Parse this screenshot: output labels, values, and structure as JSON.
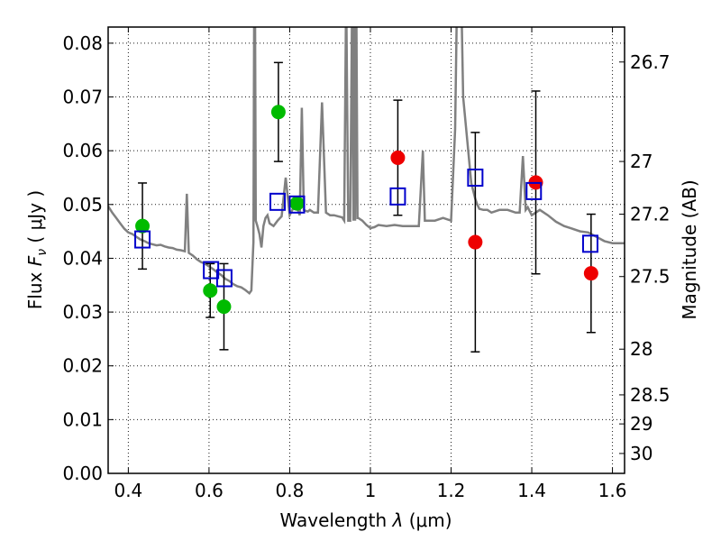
{
  "chart_data": {
    "type": "scatter",
    "title": "",
    "xlabel": "Wavelength  λ (μm)",
    "ylabel": "Flux  F_ν  ( μJy )",
    "ylabel_parts": {
      "prefix": "Flux",
      "symbol": "F",
      "subscript": "ν",
      "unit": "( μJy )"
    },
    "xlabel_parts": {
      "prefix": "Wavelength",
      "symbol": "λ",
      "unit": "(μm)"
    },
    "y2label": "Magnitude (AB)",
    "xlim": [
      0.35,
      1.63
    ],
    "ylim": [
      0.0,
      0.083
    ],
    "xticks": [
      0.4,
      0.6,
      0.8,
      1.0,
      1.2,
      1.4,
      1.6
    ],
    "xtick_labels": [
      "0.4",
      "0.6",
      "0.8",
      "1",
      "1.2",
      "1.4",
      "1.6"
    ],
    "yticks": [
      0.0,
      0.01,
      0.02,
      0.03,
      0.04,
      0.05,
      0.06,
      0.07,
      0.08
    ],
    "ytick_labels": [
      "0.00",
      "0.01",
      "0.02",
      "0.03",
      "0.04",
      "0.05",
      "0.06",
      "0.07",
      "0.08"
    ],
    "y2ticks": [
      {
        "label": "26.7",
        "flux": 0.0765
      },
      {
        "label": "27",
        "flux": 0.058
      },
      {
        "label": "27.2",
        "flux": 0.0482
      },
      {
        "label": "27.5",
        "flux": 0.0366
      },
      {
        "label": "28",
        "flux": 0.0231
      },
      {
        "label": "28.5",
        "flux": 0.0146
      },
      {
        "label": "29",
        "flux": 0.0092
      },
      {
        "label": "30",
        "flux": 0.0037
      }
    ],
    "grid": true,
    "colors": {
      "model": "#808080",
      "green": "#00bb00",
      "red": "#ee0000",
      "square": "#0000cc",
      "errorbar": "#000000"
    },
    "series": [
      {
        "kind": "model-spectrum",
        "color": "#808080",
        "x": [
          0.35,
          0.36,
          0.37,
          0.38,
          0.39,
          0.4,
          0.41,
          0.42,
          0.43,
          0.44,
          0.45,
          0.46,
          0.47,
          0.48,
          0.49,
          0.5,
          0.51,
          0.52,
          0.53,
          0.54,
          0.545,
          0.55,
          0.56,
          0.57,
          0.58,
          0.59,
          0.6,
          0.61,
          0.62,
          0.63,
          0.64,
          0.65,
          0.66,
          0.67,
          0.68,
          0.69,
          0.7,
          0.705,
          0.71,
          0.712,
          0.714,
          0.716,
          0.72,
          0.725,
          0.73,
          0.735,
          0.74,
          0.745,
          0.75,
          0.76,
          0.77,
          0.78,
          0.79,
          0.8,
          0.81,
          0.82,
          0.825,
          0.83,
          0.835,
          0.84,
          0.845,
          0.85,
          0.86,
          0.87,
          0.88,
          0.89,
          0.9,
          0.91,
          0.92,
          0.93,
          0.935,
          0.94,
          0.945,
          0.95,
          0.955,
          0.958,
          0.96,
          0.962,
          0.965,
          0.968,
          0.97,
          0.98,
          0.99,
          1.0,
          1.01,
          1.02,
          1.04,
          1.06,
          1.08,
          1.1,
          1.12,
          1.13,
          1.135,
          1.14,
          1.15,
          1.16,
          1.18,
          1.2,
          1.21,
          1.215,
          1.22,
          1.225,
          1.23,
          1.24,
          1.25,
          1.26,
          1.265,
          1.27,
          1.28,
          1.29,
          1.3,
          1.32,
          1.34,
          1.36,
          1.37,
          1.378,
          1.385,
          1.39,
          1.4,
          1.42,
          1.44,
          1.46,
          1.48,
          1.5,
          1.52,
          1.54,
          1.56,
          1.58,
          1.6,
          1.62,
          1.63
        ],
        "y": [
          0.0497,
          0.0485,
          0.0475,
          0.0465,
          0.0455,
          0.0448,
          0.0445,
          0.044,
          0.0435,
          0.0432,
          0.0428,
          0.0426,
          0.0424,
          0.0425,
          0.0422,
          0.042,
          0.0419,
          0.0416,
          0.0415,
          0.0413,
          0.052,
          0.041,
          0.0405,
          0.0398,
          0.0393,
          0.039,
          0.0385,
          0.038,
          0.0374,
          0.0369,
          0.0362,
          0.0358,
          0.0352,
          0.0348,
          0.0346,
          0.0341,
          0.0335,
          0.034,
          0.043,
          0.09,
          0.09,
          0.047,
          0.046,
          0.0445,
          0.042,
          0.046,
          0.0475,
          0.048,
          0.0465,
          0.046,
          0.047,
          0.0478,
          0.055,
          0.048,
          0.0495,
          0.049,
          0.048,
          0.068,
          0.049,
          0.0488,
          0.0487,
          0.049,
          0.0485,
          0.0485,
          0.069,
          0.0485,
          0.048,
          0.048,
          0.0478,
          0.0476,
          0.047,
          0.09,
          0.047,
          0.047,
          0.09,
          0.047,
          0.09,
          0.047,
          0.09,
          0.0475,
          0.0475,
          0.047,
          0.0462,
          0.0456,
          0.0458,
          0.0462,
          0.046,
          0.0462,
          0.046,
          0.046,
          0.046,
          0.06,
          0.047,
          0.047,
          0.047,
          0.047,
          0.0475,
          0.047,
          0.064,
          0.09,
          0.09,
          0.09,
          0.07,
          0.062,
          0.054,
          0.051,
          0.05,
          0.0492,
          0.049,
          0.049,
          0.0485,
          0.049,
          0.049,
          0.0485,
          0.0485,
          0.059,
          0.049,
          0.0495,
          0.048,
          0.049,
          0.048,
          0.0468,
          0.046,
          0.0455,
          0.045,
          0.0448,
          0.044,
          0.0432,
          0.0428,
          0.0428,
          0.0428
        ]
      },
      {
        "kind": "green-points",
        "color": "#00bb00",
        "points": [
          {
            "x": 0.435,
            "y": 0.046,
            "yerr": 0.008
          },
          {
            "x": 0.603,
            "y": 0.034,
            "yerr": 0.005
          },
          {
            "x": 0.637,
            "y": 0.031,
            "yerr": 0.008
          },
          {
            "x": 0.772,
            "y": 0.0672,
            "yerr": 0.0092
          },
          {
            "x": 0.818,
            "y": 0.0502,
            "yerr": 0.0
          }
        ]
      },
      {
        "kind": "red-points",
        "color": "#ee0000",
        "points": [
          {
            "x": 1.068,
            "y": 0.0587,
            "yerr": 0.0107
          },
          {
            "x": 1.26,
            "y": 0.043,
            "yerr": 0.0204
          },
          {
            "x": 1.41,
            "y": 0.0541,
            "yerr": 0.017
          },
          {
            "x": 1.547,
            "y": 0.0372,
            "yerr": 0.011
          }
        ]
      },
      {
        "kind": "model-bandpass-squares",
        "color": "#0000cc",
        "points": [
          {
            "x": 0.435,
            "y": 0.0435
          },
          {
            "x": 0.605,
            "y": 0.0378
          },
          {
            "x": 0.638,
            "y": 0.0363
          },
          {
            "x": 0.77,
            "y": 0.0505
          },
          {
            "x": 0.818,
            "y": 0.05
          },
          {
            "x": 1.068,
            "y": 0.0515
          },
          {
            "x": 1.26,
            "y": 0.055
          },
          {
            "x": 1.405,
            "y": 0.0525
          },
          {
            "x": 1.545,
            "y": 0.0427
          }
        ]
      }
    ]
  }
}
